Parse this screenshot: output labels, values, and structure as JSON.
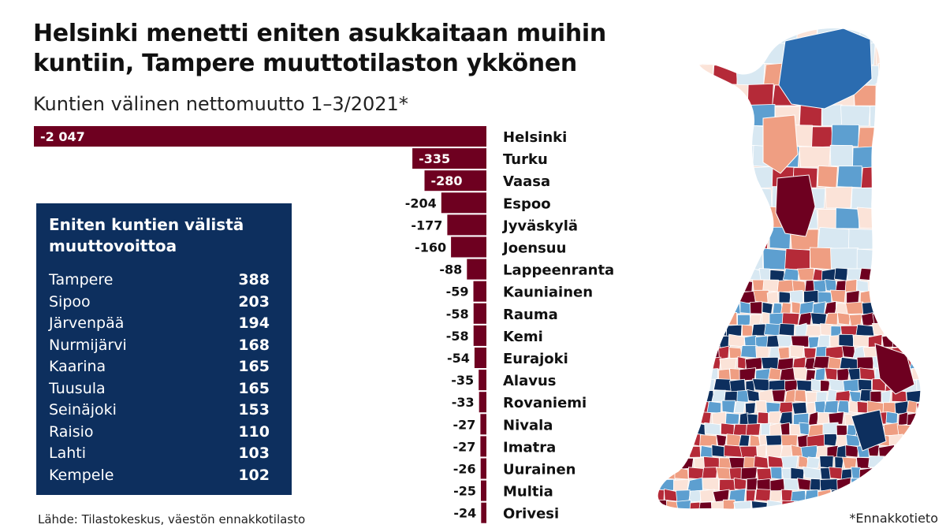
{
  "title": "Helsinki menetti eniten asukkaitaan muihin kuntiin, Tampere muuttotilaston ykkönen",
  "subtitle": "Kuntien välinen nettomuutto 1–3/2021*",
  "source": "Lähde: Tilastokeskus, väestön ennakkotilasto",
  "footnote": "*Ennakkotieto",
  "colors": {
    "bar": "#6e0020",
    "box_bg": "#0d2f5e",
    "map_dark_red": "#6e0020",
    "map_red": "#b52a38",
    "map_salmon": "#ef9e82",
    "map_light": "#fbe3d8",
    "map_pale_blue": "#d8e8f2",
    "map_blue": "#5d9fd0",
    "map_dark_blue": "#0d2f5e"
  },
  "chart_data": {
    "type": "bar",
    "orientation": "horizontal",
    "categories": [
      "Helsinki",
      "Turku",
      "Vaasa",
      "Espoo",
      "Jyväskylä",
      "Joensuu",
      "Lappeenranta",
      "Kauniainen",
      "Rauma",
      "Kemi",
      "Eurajoki",
      "Alavus",
      "Rovaniemi",
      "Nivala",
      "Imatra",
      "Uurainen",
      "Multia",
      "Orivesi"
    ],
    "values": [
      -2047,
      -335,
      -280,
      -204,
      -177,
      -160,
      -88,
      -59,
      -58,
      -58,
      -54,
      -35,
      -33,
      -27,
      -27,
      -26,
      -25,
      -24
    ],
    "value_labels": [
      "-2 047",
      "-335",
      "-280",
      "-204",
      "-177",
      "-160",
      "-88",
      "-59",
      "-58",
      "-58",
      "-54",
      "-35",
      "-33",
      "-27",
      "-27",
      "-26",
      "-25",
      "-24"
    ],
    "title": "Kuntien välinen nettomuutto 1–3/2021*",
    "xlim": [
      -2047,
      0
    ]
  },
  "gains_box": {
    "title": "Eniten kuntien välistä muuttovoittoa",
    "rows": [
      {
        "name": "Tampere",
        "value": "388"
      },
      {
        "name": "Sipoo",
        "value": "203"
      },
      {
        "name": "Järvenpää",
        "value": "194"
      },
      {
        "name": "Nurmijärvi",
        "value": "168"
      },
      {
        "name": "Kaarina",
        "value": "165"
      },
      {
        "name": "Tuusula",
        "value": "165"
      },
      {
        "name": "Seinäjoki",
        "value": "153"
      },
      {
        "name": "Raisio",
        "value": "110"
      },
      {
        "name": "Lahti",
        "value": "103"
      },
      {
        "name": "Kempele",
        "value": "102"
      }
    ]
  },
  "map": {
    "icon": "finland-municipality-choropleth-map"
  }
}
